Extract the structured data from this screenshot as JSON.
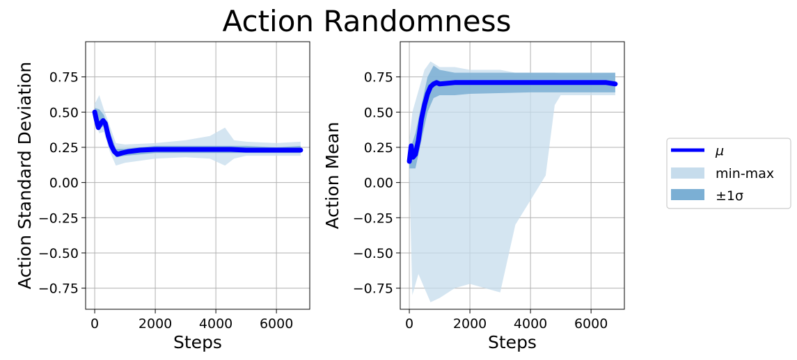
{
  "title": "Action Randomness",
  "colors": {
    "mean": "#0000ff",
    "minmax": "#c6dcec",
    "std": "#7bafd4",
    "grid": "#b0b0b0"
  },
  "legend": {
    "position": "right",
    "entries": [
      {
        "label": "μ",
        "style": "line",
        "color": "#0000ff"
      },
      {
        "label": "min-max",
        "style": "patch",
        "color": "#c6dcec"
      },
      {
        "label": "±1σ",
        "style": "patch",
        "color": "#7bafd4"
      }
    ]
  },
  "chart_data": [
    {
      "type": "line",
      "xlabel": "Steps",
      "ylabel": "Action Standard Deviation",
      "xlim": [
        -300,
        7100
      ],
      "ylim": [
        -0.9,
        1.0
      ],
      "xticks": [
        0,
        2000,
        4000,
        6000
      ],
      "xtick_labels": [
        "0",
        "2000",
        "4000",
        "6000"
      ],
      "yticks": [
        -0.75,
        -0.5,
        -0.25,
        0.0,
        0.25,
        0.5,
        0.75
      ],
      "ytick_labels": [
        "−0.75",
        "−0.50",
        "−0.25",
        "0.00",
        "0.25",
        "0.50",
        "0.75"
      ],
      "grid": true,
      "series": [
        {
          "name": "μ",
          "x": [
            0,
            60,
            120,
            200,
            280,
            350,
            450,
            550,
            650,
            750,
            900,
            1100,
            1500,
            2000,
            2500,
            3000,
            3500,
            4000,
            4500,
            5000,
            5500,
            6000,
            6500,
            6800
          ],
          "y": [
            0.5,
            0.44,
            0.39,
            0.42,
            0.44,
            0.42,
            0.33,
            0.26,
            0.22,
            0.2,
            0.21,
            0.22,
            0.23,
            0.235,
            0.235,
            0.235,
            0.235,
            0.235,
            0.235,
            0.23,
            0.23,
            0.23,
            0.23,
            0.23
          ]
        },
        {
          "name": "min-max",
          "x": [
            0,
            150,
            300,
            500,
            700,
            1000,
            2000,
            3000,
            3800,
            4300,
            4600,
            5000,
            6000,
            6800
          ],
          "lower": [
            0.44,
            0.35,
            0.36,
            0.22,
            0.12,
            0.14,
            0.17,
            0.18,
            0.17,
            0.12,
            0.17,
            0.19,
            0.19,
            0.19
          ],
          "upper": [
            0.56,
            0.62,
            0.52,
            0.4,
            0.28,
            0.27,
            0.28,
            0.3,
            0.33,
            0.39,
            0.3,
            0.29,
            0.28,
            0.29
          ]
        },
        {
          "name": "±1σ",
          "x": [
            0,
            150,
            300,
            500,
            700,
            1000,
            2000,
            3000,
            4000,
            5000,
            6000,
            6800
          ],
          "lower": [
            0.47,
            0.39,
            0.4,
            0.27,
            0.18,
            0.19,
            0.21,
            0.21,
            0.21,
            0.21,
            0.21,
            0.21
          ],
          "upper": [
            0.53,
            0.52,
            0.48,
            0.36,
            0.24,
            0.24,
            0.26,
            0.26,
            0.26,
            0.26,
            0.25,
            0.26
          ]
        }
      ]
    },
    {
      "type": "line",
      "xlabel": "Steps",
      "ylabel": "Action Mean",
      "xlim": [
        -300,
        7100
      ],
      "ylim": [
        -0.9,
        1.0
      ],
      "xticks": [
        0,
        2000,
        4000,
        6000
      ],
      "xtick_labels": [
        "0",
        "2000",
        "4000",
        "6000"
      ],
      "yticks": [
        -0.75,
        -0.5,
        -0.25,
        0.0,
        0.25,
        0.5,
        0.75
      ],
      "ytick_labels": [
        "−0.75",
        "−0.50",
        "−0.25",
        "0.00",
        "0.25",
        "0.50",
        "0.75"
      ],
      "grid": true,
      "series": [
        {
          "name": "μ",
          "x": [
            0,
            60,
            120,
            200,
            300,
            400,
            500,
            600,
            700,
            800,
            900,
            1000,
            1500,
            2000,
            3000,
            4000,
            5000,
            6000,
            6500,
            6800
          ],
          "y": [
            0.15,
            0.26,
            0.18,
            0.2,
            0.3,
            0.45,
            0.55,
            0.63,
            0.68,
            0.7,
            0.71,
            0.7,
            0.71,
            0.71,
            0.71,
            0.71,
            0.71,
            0.71,
            0.71,
            0.7
          ]
        },
        {
          "name": "min-max",
          "x": [
            0,
            100,
            300,
            500,
            700,
            1000,
            1500,
            2000,
            3000,
            3500,
            4500,
            4800,
            5000,
            6000,
            6800
          ],
          "lower": [
            0.05,
            -0.8,
            -0.65,
            -0.75,
            -0.85,
            -0.82,
            -0.75,
            -0.72,
            -0.78,
            -0.3,
            0.05,
            0.55,
            0.62,
            0.62,
            0.62
          ],
          "upper": [
            0.3,
            0.5,
            0.65,
            0.8,
            0.86,
            0.82,
            0.82,
            0.8,
            0.8,
            0.78,
            0.78,
            0.78,
            0.77,
            0.77,
            0.78
          ]
        },
        {
          "name": "±1σ",
          "x": [
            0,
            200,
            400,
            600,
            800,
            1000,
            1500,
            2000,
            4000,
            6000,
            6800
          ],
          "lower": [
            0.1,
            0.1,
            0.3,
            0.5,
            0.6,
            0.62,
            0.62,
            0.63,
            0.64,
            0.64,
            0.64
          ],
          "upper": [
            0.22,
            0.35,
            0.55,
            0.75,
            0.83,
            0.8,
            0.78,
            0.78,
            0.78,
            0.78,
            0.78
          ]
        }
      ]
    }
  ]
}
